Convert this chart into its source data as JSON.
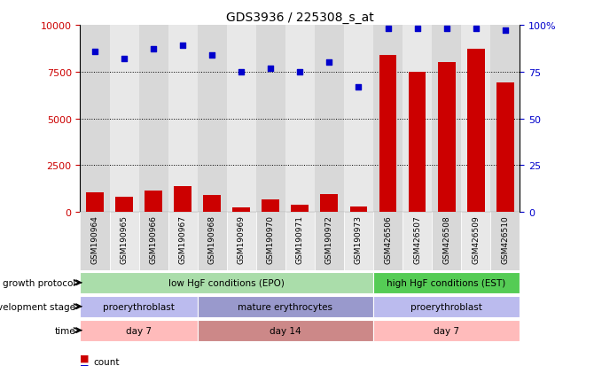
{
  "title": "GDS3936 / 225308_s_at",
  "samples": [
    "GSM190964",
    "GSM190965",
    "GSM190966",
    "GSM190967",
    "GSM190968",
    "GSM190969",
    "GSM190970",
    "GSM190971",
    "GSM190972",
    "GSM190973",
    "GSM426506",
    "GSM426507",
    "GSM426508",
    "GSM426509",
    "GSM426510"
  ],
  "counts": [
    1050,
    800,
    1150,
    1400,
    900,
    250,
    650,
    400,
    950,
    300,
    8400,
    7500,
    8000,
    8700,
    6900
  ],
  "percentiles": [
    86,
    82,
    87,
    89,
    84,
    75,
    77,
    75,
    80,
    67,
    98,
    98,
    98,
    98,
    97
  ],
  "ylim_left": [
    0,
    10000
  ],
  "ylim_right": [
    0,
    100
  ],
  "yticks_left": [
    0,
    2500,
    5000,
    7500,
    10000
  ],
  "yticks_right": [
    0,
    25,
    50,
    75,
    100
  ],
  "bar_color": "#cc0000",
  "dot_color": "#0000cc",
  "growth_protocol_labels": [
    {
      "text": "low HgF conditions (EPO)",
      "start": 0,
      "end": 10,
      "color": "#aaddaa"
    },
    {
      "text": "high HgF conditions (EST)",
      "start": 10,
      "end": 15,
      "color": "#55cc55"
    }
  ],
  "development_stage_labels": [
    {
      "text": "proerythroblast",
      "start": 0,
      "end": 4,
      "color": "#bbbbee"
    },
    {
      "text": "mature erythrocytes",
      "start": 4,
      "end": 10,
      "color": "#9999cc"
    },
    {
      "text": "proerythroblast",
      "start": 10,
      "end": 15,
      "color": "#bbbbee"
    }
  ],
  "time_labels": [
    {
      "text": "day 7",
      "start": 0,
      "end": 4,
      "color": "#ffbbbb"
    },
    {
      "text": "day 14",
      "start": 4,
      "end": 10,
      "color": "#cc8888"
    },
    {
      "text": "day 7",
      "start": 10,
      "end": 15,
      "color": "#ffbbbb"
    }
  ],
  "row_labels": [
    "growth protocol",
    "development stage",
    "time"
  ],
  "col_bg_even": "#d8d8d8",
  "col_bg_odd": "#e8e8e8"
}
